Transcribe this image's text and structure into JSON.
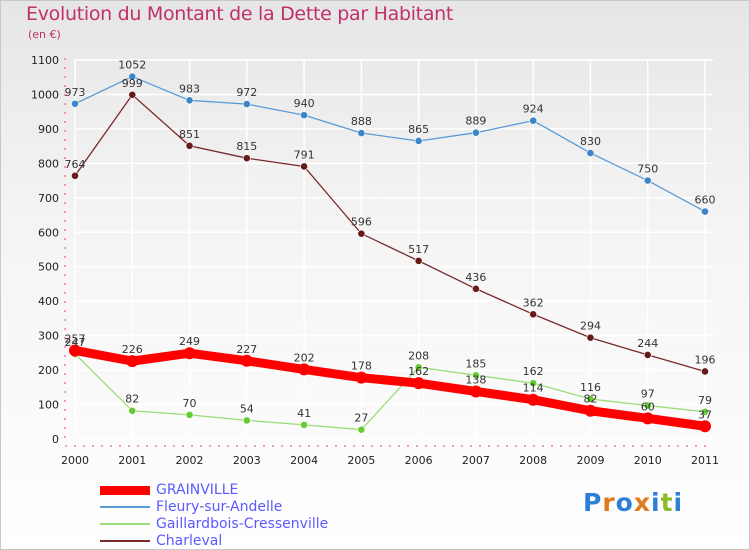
{
  "title": "Evolution du Montant de la Dette par Habitant",
  "subtitle": "(en €)",
  "logo_text": "Proxiti",
  "colors": {
    "title": "#c0306a",
    "legend_text": "#5a5aff",
    "grid": "#ffffff",
    "axis": "#e84070"
  },
  "chart_data": {
    "type": "line",
    "x": [
      "2000",
      "2001",
      "2002",
      "2003",
      "2004",
      "2005",
      "2006",
      "2007",
      "2008",
      "2009",
      "2010",
      "2011"
    ],
    "ylim": [
      0,
      1100
    ],
    "yticks": [
      0,
      100,
      200,
      300,
      400,
      500,
      600,
      700,
      800,
      900,
      1000,
      1100
    ],
    "grid": true,
    "legend_position": "bottom-left",
    "series": [
      {
        "name": "GRAINVILLE",
        "color": "#ff0000",
        "emphasis": true,
        "values": [
          257,
          226,
          249,
          227,
          202,
          178,
          162,
          138,
          114,
          82,
          60,
          37
        ],
        "labels": [
          "257",
          "226",
          "249",
          "227",
          "202",
          "178",
          "162",
          "138",
          "114",
          "82",
          "60",
          "37"
        ]
      },
      {
        "name": "Fleury-sur-Andelle",
        "color": "#5b9bd5",
        "marker_color": "#3a86c8",
        "values": [
          973,
          1052,
          983,
          972,
          940,
          888,
          865,
          889,
          924,
          830,
          750,
          660
        ],
        "labels": [
          "973",
          "1052",
          "983",
          "972",
          "940",
          "888",
          "865",
          "889",
          "924",
          "830",
          "750",
          "660"
        ]
      },
      {
        "name": "Gaillardbois-Cressenville",
        "color": "#99dd77",
        "marker_color": "#66cc33",
        "values": [
          247,
          82,
          70,
          54,
          41,
          27,
          208,
          185,
          162,
          116,
          97,
          79
        ],
        "labels": [
          "247",
          "82",
          "70",
          "54",
          "41",
          "27",
          "208",
          "185",
          "162",
          "116",
          "97",
          "79"
        ]
      },
      {
        "name": "Charleval",
        "color": "#7a2a2a",
        "marker_color": "#661a1a",
        "values": [
          764,
          999,
          851,
          815,
          791,
          596,
          517,
          436,
          362,
          294,
          244,
          196
        ],
        "labels": [
          "764",
          "999",
          "851",
          "815",
          "791",
          "596",
          "517",
          "436",
          "362",
          "294",
          "244",
          "196"
        ]
      }
    ]
  }
}
